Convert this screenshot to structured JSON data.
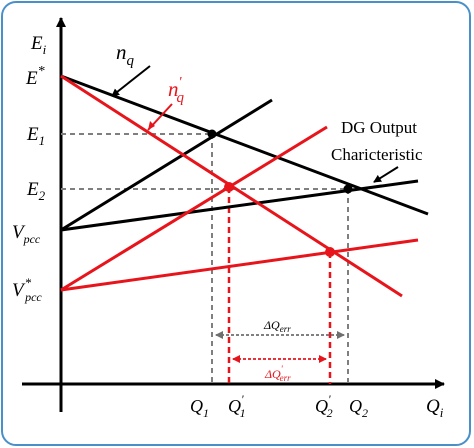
{
  "colors": {
    "frame": "#4a90c8",
    "black": "#000000",
    "red": "#e8141b",
    "grey": "#7f7f7f",
    "background": "#ffffff"
  },
  "labels": {
    "y_axis": "E",
    "y_axis_sub": "i",
    "x_axis": "Q",
    "x_axis_sub": "i",
    "E_star": "E",
    "E_star_sup": "*",
    "E1": "E",
    "E1_sub": "1",
    "E2": "E",
    "E2_sub": "2",
    "Vpcc": "V",
    "Vpcc_sub": "pcc",
    "Vpcc_star": "V",
    "Vpcc_star_sup": "*",
    "Vpcc_star_sub": "pcc",
    "nq": "n",
    "nq_sub": "q",
    "nq_prime": "n",
    "nq_prime_sub": "q",
    "nq_prime_sup": "'",
    "dg_line1": "DG Output",
    "dg_line2": "Charicteristic",
    "Q1": "Q",
    "Q1_sub": "1",
    "Q1p": "Q",
    "Q1p_sub": "1",
    "Q1p_sup": "'",
    "Q2p": "Q",
    "Q2p_sub": "2",
    "Q2p_sup": "'",
    "Q2": "Q",
    "Q2_sub": "2",
    "dQerr": "ΔQ",
    "dQerr_sub": "err",
    "dQerr_p": "ΔQ",
    "dQerr_p_sub": "err",
    "dQerr_p_sup": "'"
  }
}
